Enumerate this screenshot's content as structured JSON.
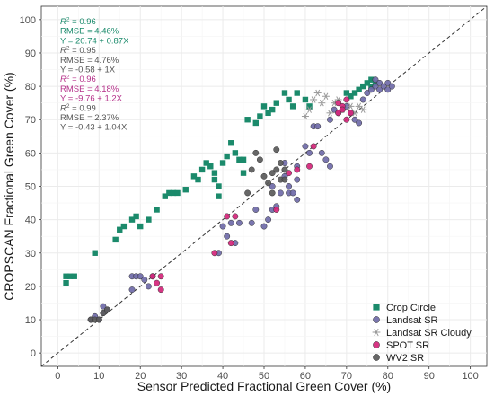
{
  "chart_data": {
    "type": "scatter",
    "xlabel": "Sensor Predicted Fractional Green Cover (%)",
    "ylabel": "CROPSCAN Fractional Green Cover (%)",
    "xlim": [
      -4,
      104
    ],
    "ylim": [
      -4,
      104
    ],
    "x_ticks": [
      0,
      10,
      20,
      30,
      40,
      50,
      60,
      70,
      80,
      90,
      100
    ],
    "y_ticks": [
      0,
      10,
      20,
      30,
      40,
      50,
      60,
      70,
      80,
      90,
      100
    ],
    "grid": true,
    "reference_line": "1:1 dashed",
    "legend_position": "bottom-right",
    "annotations": [
      {
        "r2": "0.96",
        "rmse": "RMSE = 4.46%",
        "eq": "Y = 20.74 + 0.87X",
        "color": "#1a8a6b"
      },
      {
        "r2": "0.95",
        "rmse": "RMSE = 4.76%",
        "eq": "Y = -0.58 + 1X",
        "color": "#555555"
      },
      {
        "r2": "0.96",
        "rmse": "RMSE = 4.18%",
        "eq": "Y = -9.76 + 1.2X",
        "color": "#b5318a"
      },
      {
        "r2": "0.99",
        "rmse": "RMSE = 2.37%",
        "eq": "Y = -0.43 + 1.04X",
        "color": "#555555"
      }
    ],
    "series": [
      {
        "name": "Crop Circle",
        "marker": "square",
        "color": "#1b8a6b",
        "points": [
          [
            2,
            23
          ],
          [
            3,
            23
          ],
          [
            4,
            23
          ],
          [
            2,
            21
          ],
          [
            9,
            30
          ],
          [
            14,
            34
          ],
          [
            15,
            37
          ],
          [
            16,
            38
          ],
          [
            18,
            40
          ],
          [
            19,
            41
          ],
          [
            20,
            38
          ],
          [
            22,
            40
          ],
          [
            24,
            43
          ],
          [
            26,
            47
          ],
          [
            27,
            48
          ],
          [
            28,
            48
          ],
          [
            29,
            48
          ],
          [
            31,
            49
          ],
          [
            33,
            53
          ],
          [
            34,
            52
          ],
          [
            35,
            55
          ],
          [
            36,
            57
          ],
          [
            37,
            56
          ],
          [
            38,
            54
          ],
          [
            38,
            52
          ],
          [
            39,
            50
          ],
          [
            39,
            47
          ],
          [
            40,
            57
          ],
          [
            41,
            59
          ],
          [
            42,
            63
          ],
          [
            43,
            60
          ],
          [
            44,
            58
          ],
          [
            45,
            58
          ],
          [
            45,
            54
          ],
          [
            46,
            70
          ],
          [
            48,
            69
          ],
          [
            49,
            71
          ],
          [
            50,
            74
          ],
          [
            51,
            72
          ],
          [
            52,
            73
          ],
          [
            53,
            75
          ],
          [
            55,
            78
          ],
          [
            56,
            76
          ],
          [
            57,
            74
          ],
          [
            58,
            78
          ],
          [
            60,
            76
          ],
          [
            61,
            74
          ],
          [
            70,
            78
          ],
          [
            71,
            77
          ],
          [
            72,
            78
          ],
          [
            73,
            79
          ],
          [
            74,
            80
          ],
          [
            75,
            81
          ],
          [
            76,
            80
          ],
          [
            76,
            82
          ],
          [
            77,
            81
          ]
        ]
      },
      {
        "name": "Landsat SR",
        "marker": "circle",
        "color": "#6f6aa8",
        "points": [
          [
            8,
            10
          ],
          [
            9,
            11
          ],
          [
            10,
            10
          ],
          [
            11,
            12
          ],
          [
            11,
            14
          ],
          [
            12,
            13
          ],
          [
            18,
            19
          ],
          [
            18,
            23
          ],
          [
            19,
            23
          ],
          [
            20,
            23
          ],
          [
            21,
            22
          ],
          [
            22,
            20
          ],
          [
            23,
            23
          ],
          [
            39,
            30
          ],
          [
            40,
            38
          ],
          [
            41,
            35
          ],
          [
            42,
            39
          ],
          [
            43,
            33
          ],
          [
            44,
            39
          ],
          [
            47,
            39
          ],
          [
            48,
            43
          ],
          [
            50,
            38
          ],
          [
            51,
            40
          ],
          [
            52,
            43
          ],
          [
            52,
            50
          ],
          [
            53,
            44
          ],
          [
            54,
            48
          ],
          [
            55,
            53
          ],
          [
            55,
            57
          ],
          [
            56,
            50
          ],
          [
            56,
            48
          ],
          [
            57,
            48
          ],
          [
            58,
            56
          ],
          [
            58,
            52
          ],
          [
            58,
            46
          ],
          [
            60,
            62
          ],
          [
            61,
            60
          ],
          [
            62,
            68
          ],
          [
            63,
            68
          ],
          [
            64,
            60
          ],
          [
            65,
            58
          ],
          [
            66,
            56
          ],
          [
            66,
            70
          ],
          [
            67,
            73
          ],
          [
            68,
            72
          ],
          [
            69,
            73
          ],
          [
            70,
            74
          ],
          [
            71,
            72
          ],
          [
            72,
            70
          ],
          [
            73,
            69
          ],
          [
            74,
            76
          ],
          [
            75,
            78
          ],
          [
            76,
            79
          ],
          [
            77,
            80
          ],
          [
            77,
            82
          ],
          [
            78,
            81
          ],
          [
            78,
            79
          ],
          [
            79,
            80
          ],
          [
            80,
            81
          ],
          [
            80,
            79
          ],
          [
            81,
            80
          ]
        ]
      },
      {
        "name": "Landsat SR Cloudy",
        "marker": "asterisk",
        "color": "#9a9a9a",
        "points": [
          [
            60,
            71
          ],
          [
            61,
            73
          ],
          [
            62,
            76
          ],
          [
            63,
            78
          ],
          [
            64,
            75
          ],
          [
            65,
            77
          ],
          [
            66,
            72
          ],
          [
            67,
            75
          ],
          [
            68,
            76
          ],
          [
            69,
            73
          ],
          [
            71,
            74
          ],
          [
            72,
            72
          ],
          [
            73,
            74
          ],
          [
            74,
            73
          ]
        ]
      },
      {
        "name": "SPOT SR",
        "marker": "circle",
        "color": "#d4257a",
        "points": [
          [
            23,
            23
          ],
          [
            24,
            21
          ],
          [
            25,
            19
          ],
          [
            25,
            23
          ],
          [
            38,
            30
          ],
          [
            41,
            41
          ],
          [
            42,
            33
          ],
          [
            43,
            41
          ],
          [
            53,
            43
          ],
          [
            56,
            54
          ],
          [
            58,
            55
          ],
          [
            61,
            56
          ],
          [
            62,
            62
          ],
          [
            68,
            72
          ],
          [
            68,
            75
          ],
          [
            69,
            74
          ],
          [
            69,
            73
          ],
          [
            70,
            70
          ],
          [
            70,
            76
          ],
          [
            71,
            72
          ]
        ]
      },
      {
        "name": "WV2 SR",
        "marker": "circle",
        "color": "#5a5a5a",
        "points": [
          [
            8,
            10
          ],
          [
            9,
            10
          ],
          [
            10,
            10
          ],
          [
            11,
            12
          ],
          [
            12,
            13
          ],
          [
            46,
            48
          ],
          [
            47,
            55
          ],
          [
            48,
            60
          ],
          [
            49,
            58
          ],
          [
            50,
            53
          ],
          [
            51,
            51
          ],
          [
            52,
            54
          ],
          [
            52,
            48
          ],
          [
            53,
            55
          ],
          [
            53,
            61
          ],
          [
            54,
            57
          ],
          [
            54,
            52
          ],
          [
            55,
            52
          ],
          [
            55,
            55
          ]
        ]
      }
    ]
  }
}
